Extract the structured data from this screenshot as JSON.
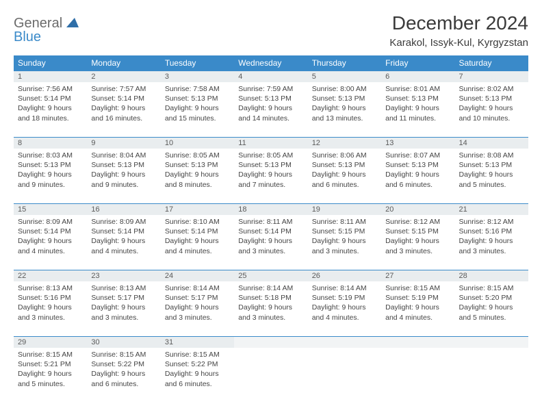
{
  "styling": {
    "header_bg": "#3a8ac9",
    "header_text_color": "#ffffff",
    "daynum_bg": "#e9edef",
    "daynum_border_top": "#3a8ac9",
    "body_text_color": "#444444",
    "logo_gray": "#6b6b6b",
    "logo_blue": "#3a8ac9",
    "page_bg": "#ffffff",
    "month_title_fontsize": 28,
    "location_fontsize": 15,
    "weekday_fontsize": 12,
    "cell_fontsize": 10.5
  },
  "logo": {
    "line1": "General",
    "line2": "Blue"
  },
  "title": "December 2024",
  "location": "Karakol, Issyk-Kul, Kyrgyzstan",
  "weekdays": [
    "Sunday",
    "Monday",
    "Tuesday",
    "Wednesday",
    "Thursday",
    "Friday",
    "Saturday"
  ],
  "days": [
    {
      "n": "1",
      "sr": "Sunrise: 7:56 AM",
      "ss": "Sunset: 5:14 PM",
      "d1": "Daylight: 9 hours",
      "d2": "and 18 minutes."
    },
    {
      "n": "2",
      "sr": "Sunrise: 7:57 AM",
      "ss": "Sunset: 5:14 PM",
      "d1": "Daylight: 9 hours",
      "d2": "and 16 minutes."
    },
    {
      "n": "3",
      "sr": "Sunrise: 7:58 AM",
      "ss": "Sunset: 5:13 PM",
      "d1": "Daylight: 9 hours",
      "d2": "and 15 minutes."
    },
    {
      "n": "4",
      "sr": "Sunrise: 7:59 AM",
      "ss": "Sunset: 5:13 PM",
      "d1": "Daylight: 9 hours",
      "d2": "and 14 minutes."
    },
    {
      "n": "5",
      "sr": "Sunrise: 8:00 AM",
      "ss": "Sunset: 5:13 PM",
      "d1": "Daylight: 9 hours",
      "d2": "and 13 minutes."
    },
    {
      "n": "6",
      "sr": "Sunrise: 8:01 AM",
      "ss": "Sunset: 5:13 PM",
      "d1": "Daylight: 9 hours",
      "d2": "and 11 minutes."
    },
    {
      "n": "7",
      "sr": "Sunrise: 8:02 AM",
      "ss": "Sunset: 5:13 PM",
      "d1": "Daylight: 9 hours",
      "d2": "and 10 minutes."
    },
    {
      "n": "8",
      "sr": "Sunrise: 8:03 AM",
      "ss": "Sunset: 5:13 PM",
      "d1": "Daylight: 9 hours",
      "d2": "and 9 minutes."
    },
    {
      "n": "9",
      "sr": "Sunrise: 8:04 AM",
      "ss": "Sunset: 5:13 PM",
      "d1": "Daylight: 9 hours",
      "d2": "and 9 minutes."
    },
    {
      "n": "10",
      "sr": "Sunrise: 8:05 AM",
      "ss": "Sunset: 5:13 PM",
      "d1": "Daylight: 9 hours",
      "d2": "and 8 minutes."
    },
    {
      "n": "11",
      "sr": "Sunrise: 8:05 AM",
      "ss": "Sunset: 5:13 PM",
      "d1": "Daylight: 9 hours",
      "d2": "and 7 minutes."
    },
    {
      "n": "12",
      "sr": "Sunrise: 8:06 AM",
      "ss": "Sunset: 5:13 PM",
      "d1": "Daylight: 9 hours",
      "d2": "and 6 minutes."
    },
    {
      "n": "13",
      "sr": "Sunrise: 8:07 AM",
      "ss": "Sunset: 5:13 PM",
      "d1": "Daylight: 9 hours",
      "d2": "and 6 minutes."
    },
    {
      "n": "14",
      "sr": "Sunrise: 8:08 AM",
      "ss": "Sunset: 5:13 PM",
      "d1": "Daylight: 9 hours",
      "d2": "and 5 minutes."
    },
    {
      "n": "15",
      "sr": "Sunrise: 8:09 AM",
      "ss": "Sunset: 5:14 PM",
      "d1": "Daylight: 9 hours",
      "d2": "and 4 minutes."
    },
    {
      "n": "16",
      "sr": "Sunrise: 8:09 AM",
      "ss": "Sunset: 5:14 PM",
      "d1": "Daylight: 9 hours",
      "d2": "and 4 minutes."
    },
    {
      "n": "17",
      "sr": "Sunrise: 8:10 AM",
      "ss": "Sunset: 5:14 PM",
      "d1": "Daylight: 9 hours",
      "d2": "and 4 minutes."
    },
    {
      "n": "18",
      "sr": "Sunrise: 8:11 AM",
      "ss": "Sunset: 5:14 PM",
      "d1": "Daylight: 9 hours",
      "d2": "and 3 minutes."
    },
    {
      "n": "19",
      "sr": "Sunrise: 8:11 AM",
      "ss": "Sunset: 5:15 PM",
      "d1": "Daylight: 9 hours",
      "d2": "and 3 minutes."
    },
    {
      "n": "20",
      "sr": "Sunrise: 8:12 AM",
      "ss": "Sunset: 5:15 PM",
      "d1": "Daylight: 9 hours",
      "d2": "and 3 minutes."
    },
    {
      "n": "21",
      "sr": "Sunrise: 8:12 AM",
      "ss": "Sunset: 5:16 PM",
      "d1": "Daylight: 9 hours",
      "d2": "and 3 minutes."
    },
    {
      "n": "22",
      "sr": "Sunrise: 8:13 AM",
      "ss": "Sunset: 5:16 PM",
      "d1": "Daylight: 9 hours",
      "d2": "and 3 minutes."
    },
    {
      "n": "23",
      "sr": "Sunrise: 8:13 AM",
      "ss": "Sunset: 5:17 PM",
      "d1": "Daylight: 9 hours",
      "d2": "and 3 minutes."
    },
    {
      "n": "24",
      "sr": "Sunrise: 8:14 AM",
      "ss": "Sunset: 5:17 PM",
      "d1": "Daylight: 9 hours",
      "d2": "and 3 minutes."
    },
    {
      "n": "25",
      "sr": "Sunrise: 8:14 AM",
      "ss": "Sunset: 5:18 PM",
      "d1": "Daylight: 9 hours",
      "d2": "and 3 minutes."
    },
    {
      "n": "26",
      "sr": "Sunrise: 8:14 AM",
      "ss": "Sunset: 5:19 PM",
      "d1": "Daylight: 9 hours",
      "d2": "and 4 minutes."
    },
    {
      "n": "27",
      "sr": "Sunrise: 8:15 AM",
      "ss": "Sunset: 5:19 PM",
      "d1": "Daylight: 9 hours",
      "d2": "and 4 minutes."
    },
    {
      "n": "28",
      "sr": "Sunrise: 8:15 AM",
      "ss": "Sunset: 5:20 PM",
      "d1": "Daylight: 9 hours",
      "d2": "and 5 minutes."
    },
    {
      "n": "29",
      "sr": "Sunrise: 8:15 AM",
      "ss": "Sunset: 5:21 PM",
      "d1": "Daylight: 9 hours",
      "d2": "and 5 minutes."
    },
    {
      "n": "30",
      "sr": "Sunrise: 8:15 AM",
      "ss": "Sunset: 5:22 PM",
      "d1": "Daylight: 9 hours",
      "d2": "and 6 minutes."
    },
    {
      "n": "31",
      "sr": "Sunrise: 8:15 AM",
      "ss": "Sunset: 5:22 PM",
      "d1": "Daylight: 9 hours",
      "d2": "and 6 minutes."
    }
  ]
}
